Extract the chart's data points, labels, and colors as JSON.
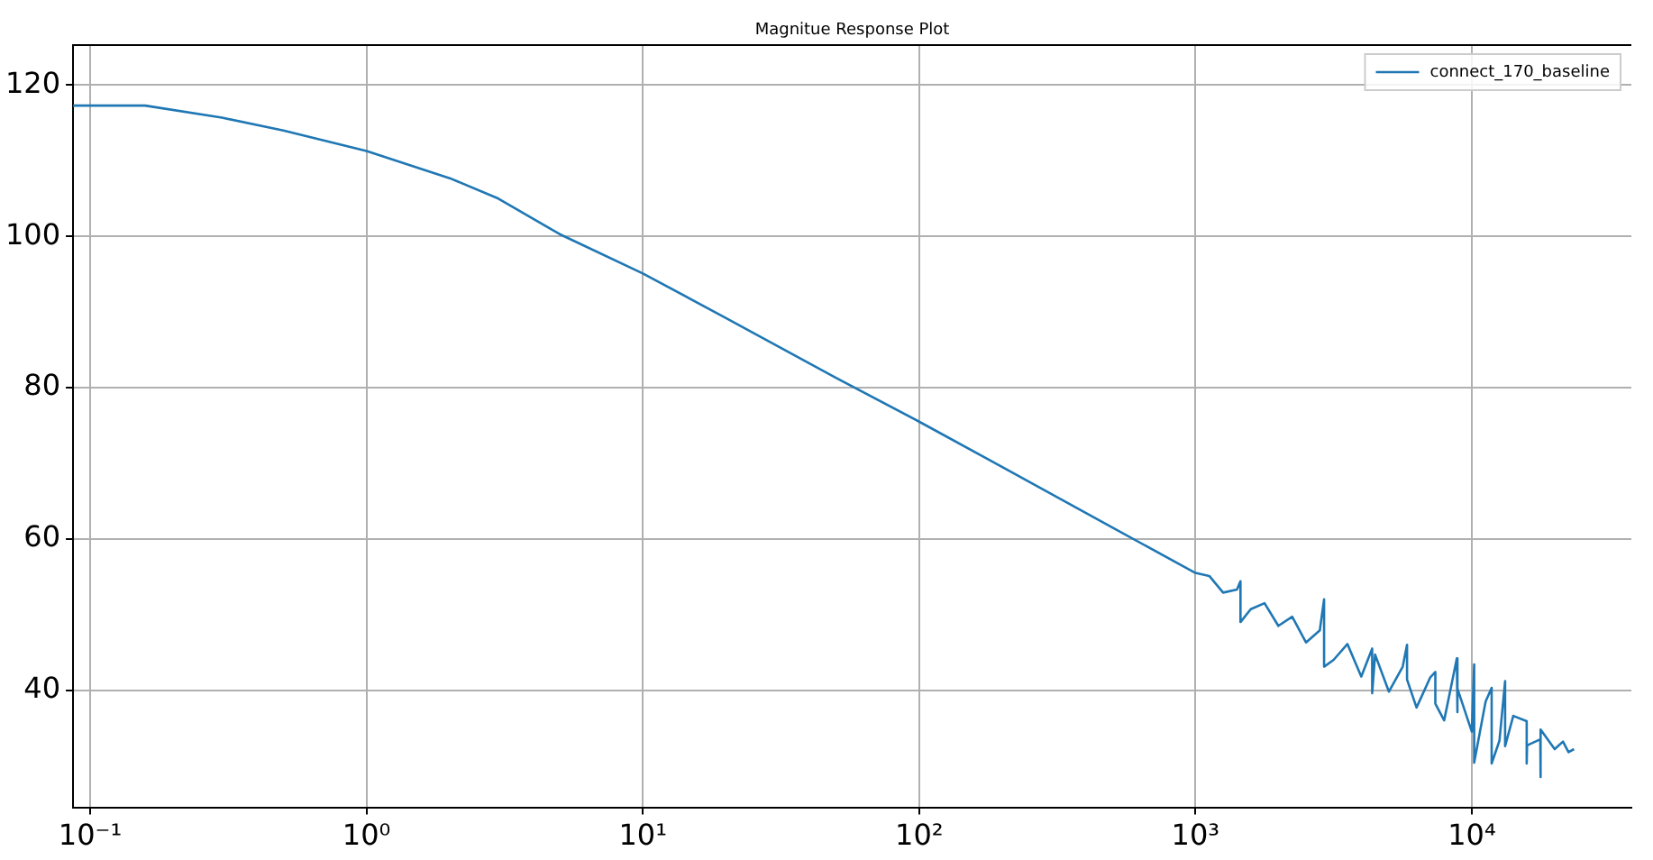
{
  "chart_data": {
    "type": "line",
    "title": "Magnitue Response Plot",
    "log": "x",
    "grid": true,
    "legend": "top right",
    "marker": "none",
    "line_style": "solid",
    "xlim": [
      0.0867,
      37800
    ],
    "ylim": [
      24.5,
      125.3
    ],
    "xticks": [
      {
        "value": 0.1,
        "label": "10⁻¹"
      },
      {
        "value": 1,
        "label": "10⁰"
      },
      {
        "value": 10,
        "label": "10¹"
      },
      {
        "value": 100,
        "label": "10²"
      },
      {
        "value": 1000,
        "label": "10³"
      },
      {
        "value": 10000,
        "label": "10⁴"
      }
    ],
    "yticks": [
      40,
      60,
      80,
      100,
      120
    ],
    "series": [
      {
        "name": "connect_170_baseline",
        "color": "#1f77b4",
        "x": [
          0.0867,
          0.158,
          0.3,
          0.5,
          1,
          2,
          3,
          5,
          10,
          20,
          50,
          100,
          200,
          500,
          1000,
          1122,
          1259,
          1413,
          1455,
          1455,
          1585,
          1778,
          1995,
          2239,
          2512,
          2818,
          2920,
          2920,
          3162,
          3548,
          3981,
          4360,
          4360,
          4467,
          5012,
          5623,
          5830,
          5830,
          6310,
          7079,
          7380,
          7380,
          7943,
          8830,
          8830,
          8913,
          10000,
          10200,
          10200,
          11220,
          11800,
          11800,
          12590,
          13200,
          13200,
          14130,
          15800,
          15800,
          15850,
          17700,
          17700,
          17780,
          19950,
          21380,
          22390,
          23440
        ],
        "values": [
          117.3,
          117.3,
          115.7,
          114.0,
          111.3,
          107.7,
          105.0,
          100.3,
          95.1,
          89.2,
          81.3,
          75.5,
          69.5,
          61.5,
          55.5,
          55.1,
          52.9,
          53.3,
          54.4,
          49.0,
          50.7,
          51.5,
          48.5,
          49.7,
          46.3,
          47.9,
          52.0,
          43.1,
          44.0,
          46.1,
          41.8,
          45.5,
          39.6,
          44.7,
          39.8,
          43.1,
          46.0,
          41.4,
          37.7,
          41.7,
          42.4,
          38.2,
          36.0,
          44.2,
          37.1,
          40.2,
          34.5,
          43.4,
          30.4,
          38.5,
          40.3,
          30.3,
          33.3,
          41.2,
          32.6,
          36.6,
          35.9,
          30.3,
          32.7,
          33.5,
          28.5,
          34.8,
          32.2,
          33.2,
          31.8,
          32.2
        ]
      }
    ]
  }
}
